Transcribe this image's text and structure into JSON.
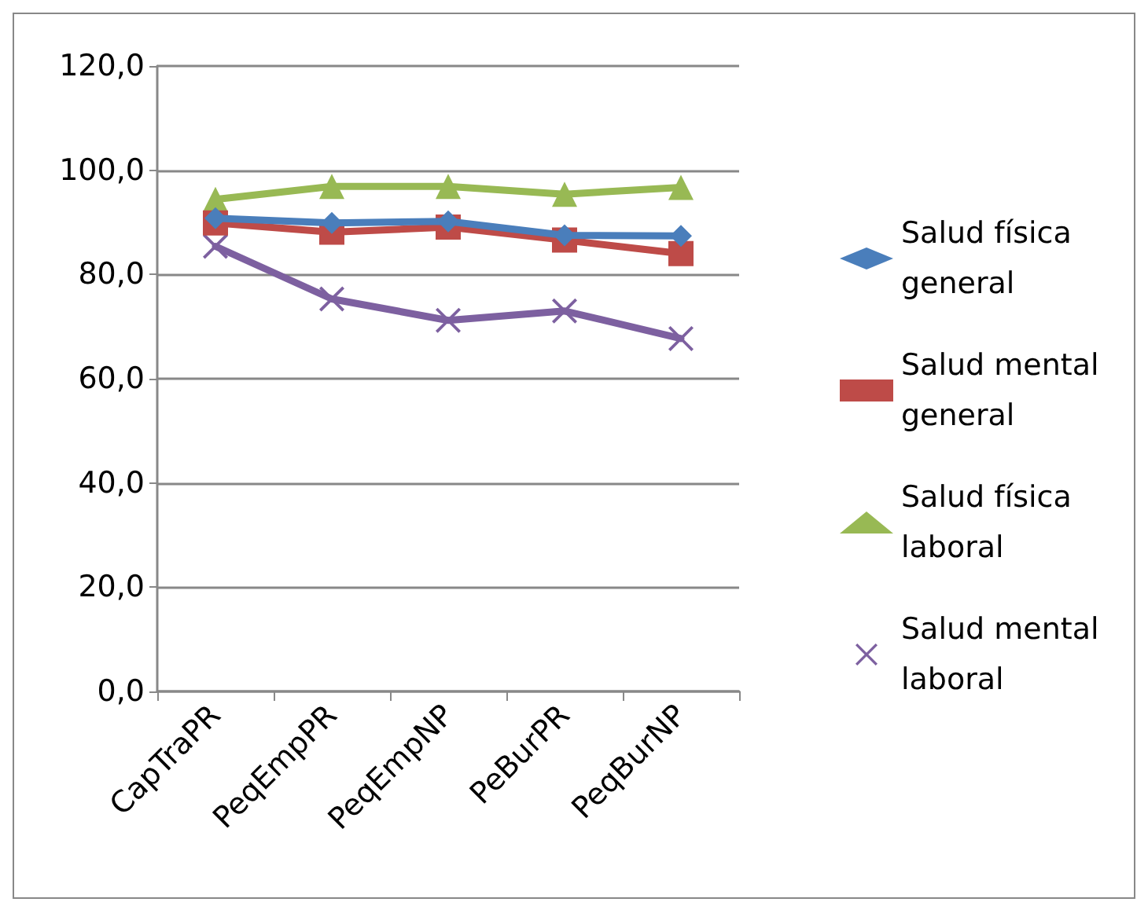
{
  "chart_data": {
    "type": "line",
    "categories": [
      "CapTraPR",
      "PeqEmpPR",
      "PeqEmpNP",
      "PeBurPR",
      "PeqBurNP"
    ],
    "series": [
      {
        "name": "Salud física general",
        "color": "#4a7ebb",
        "marker": "diamond",
        "values": [
          90.8,
          89.9,
          90.2,
          87.5,
          87.4
        ]
      },
      {
        "name": "Salud mental general",
        "color": "#be4b48",
        "marker": "square",
        "values": [
          89.9,
          88.1,
          89.1,
          86.6,
          84.0
        ]
      },
      {
        "name": "Salud física laboral",
        "color": "#98b954",
        "marker": "triangle",
        "values": [
          94.4,
          96.9,
          96.9,
          95.4,
          96.7
        ]
      },
      {
        "name": "Salud mental laboral",
        "color": "#7d60a0",
        "marker": "cross",
        "values": [
          85.4,
          75.3,
          71.2,
          73.0,
          67.7
        ]
      }
    ],
    "ylim": [
      0,
      120
    ],
    "yticks": [
      {
        "value": 0,
        "label": "0,0"
      },
      {
        "value": 20,
        "label": "20,0"
      },
      {
        "value": 40,
        "label": "40,0"
      },
      {
        "value": 60,
        "label": "60,0"
      },
      {
        "value": 80,
        "label": "80,0"
      },
      {
        "value": 100,
        "label": "100,0"
      },
      {
        "value": 120,
        "label": "120,0"
      }
    ],
    "grid": "y",
    "legend": "right",
    "line_style": "solid"
  }
}
